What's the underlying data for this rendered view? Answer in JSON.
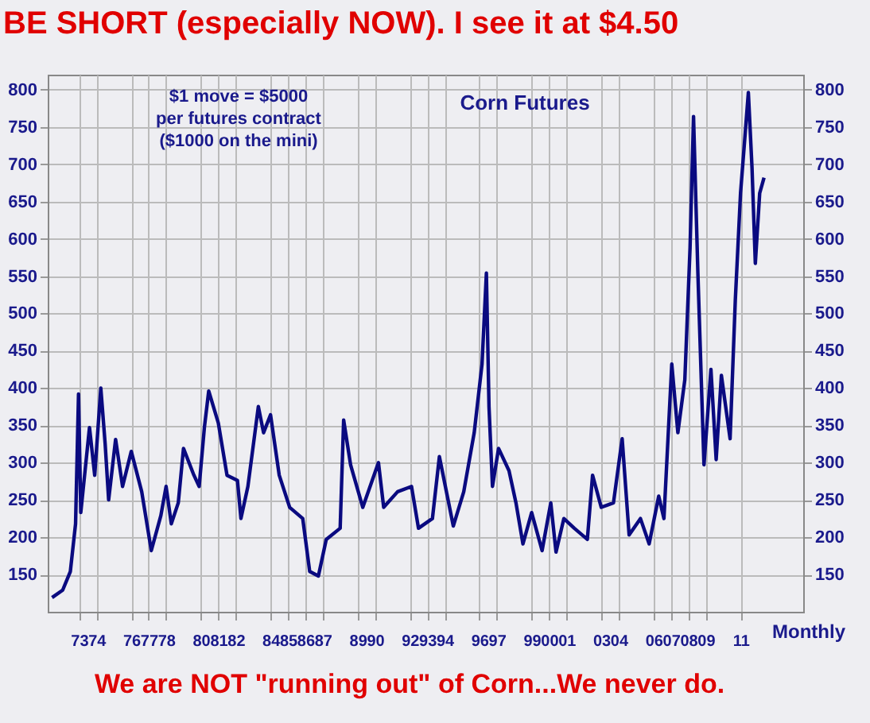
{
  "chart_data": {
    "type": "line",
    "title": "BE SHORT (especially NOW). I see it at $4.50",
    "subtitle": "Corn Futures",
    "xlabel": "Monthly",
    "annotations": [
      "$1 move = $5000\nper futures contract\n($1000 on the mini)",
      "We are NOT \"running out\" of Corn...We never do."
    ],
    "x": [
      1971.45,
      1972.06,
      1972.5,
      1972.8,
      1972.97,
      1973.1,
      1973.6,
      1973.9,
      1974.25,
      1974.5,
      1974.7,
      1975.1,
      1975.5,
      1976.0,
      1976.6,
      1977.15,
      1977.7,
      1978.0,
      1978.3,
      1978.7,
      1979.0,
      1979.6,
      1979.9,
      1980.2,
      1980.45,
      1981.0,
      1981.5,
      1982.1,
      1982.3,
      1982.7,
      1983.3,
      1983.6,
      1984.0,
      1984.5,
      1985.1,
      1985.85,
      1986.25,
      1986.75,
      1987.2,
      1988.0,
      1988.2,
      1988.6,
      1989.3,
      1990.2,
      1990.5,
      1991.3,
      1992.1,
      1992.5,
      1993.3,
      1993.7,
      1994.5,
      1995.1,
      1995.7,
      1996.15,
      1996.4,
      1996.55,
      1996.75,
      1997.1,
      1997.7,
      1998.1,
      1998.5,
      1999.0,
      1999.6,
      2000.1,
      2000.4,
      2000.85,
      2001.45,
      2002.2,
      2002.5,
      2003.0,
      2003.7,
      2004.2,
      2004.6,
      2005.25,
      2005.75,
      2006.3,
      2006.6,
      2007.05,
      2007.4,
      2007.8,
      2008.1,
      2008.3,
      2008.55,
      2008.9,
      2009.3,
      2009.6,
      2009.9,
      2010.4,
      2010.7,
      2011.0,
      2011.45,
      2011.66,
      2011.85,
      2012.1,
      2012.35
    ],
    "series": [
      {
        "color": "#0a0a80",
        "values": [
          119,
          129,
          154,
          218,
          392,
          233,
          347,
          283,
          400,
          325,
          250,
          331,
          268,
          315,
          261,
          182,
          229,
          268,
          218,
          246,
          319,
          283,
          268,
          347,
          396,
          353,
          283,
          276,
          225,
          268,
          375,
          340,
          364,
          283,
          240,
          225,
          154,
          148,
          197,
          212,
          357,
          297,
          240,
          300,
          240,
          261,
          268,
          212,
          225,
          308,
          215,
          261,
          340,
          432,
          554,
          375,
          268,
          319,
          289,
          246,
          191,
          233,
          182,
          246,
          180,
          225,
          212,
          197,
          283,
          240,
          246,
          332,
          203,
          225,
          191,
          255,
          225,
          432,
          340,
          411,
          588,
          764,
          554,
          297,
          425,
          304,
          417,
          332,
          518,
          661,
          796,
          695,
          567,
          661,
          682
        ]
      }
    ],
    "xlim": [
      1971.2,
      2014.6
    ],
    "xticks": [
      {
        "value": 1973,
        "label": "73"
      },
      {
        "value": 1974,
        "label": "74"
      },
      {
        "value": 1976,
        "label": "76"
      },
      {
        "value": 1977,
        "label": "77"
      },
      {
        "value": 1978,
        "label": "78"
      },
      {
        "value": 1980,
        "label": "80"
      },
      {
        "value": 1981,
        "label": "81"
      },
      {
        "value": 1982,
        "label": "82"
      },
      {
        "value": 1984,
        "label": "84"
      },
      {
        "value": 1985,
        "label": "85"
      },
      {
        "value": 1986,
        "label": "86"
      },
      {
        "value": 1987,
        "label": "87"
      },
      {
        "value": 1989,
        "label": "89"
      },
      {
        "value": 1990,
        "label": "90"
      },
      {
        "value": 1992,
        "label": "92"
      },
      {
        "value": 1993,
        "label": "93"
      },
      {
        "value": 1994,
        "label": "94"
      },
      {
        "value": 1996,
        "label": "96"
      },
      {
        "value": 1997,
        "label": "97"
      },
      {
        "value": 1999,
        "label": "99"
      },
      {
        "value": 2000,
        "label": "00"
      },
      {
        "value": 2001,
        "label": "01"
      },
      {
        "value": 2003,
        "label": "03"
      },
      {
        "value": 2004,
        "label": "04"
      },
      {
        "value": 2006,
        "label": "06"
      },
      {
        "value": 2007,
        "label": "07"
      },
      {
        "value": 2008,
        "label": "08"
      },
      {
        "value": 2009,
        "label": "09"
      },
      {
        "value": 2011,
        "label": "11"
      }
    ],
    "ylim": [
      100,
      820
    ],
    "yticks": [
      150,
      200,
      250,
      300,
      350,
      400,
      450,
      500,
      550,
      600,
      650,
      700,
      750,
      800
    ],
    "y2lim": [
      100,
      820
    ],
    "y2ticks": [
      150,
      200,
      250,
      300,
      350,
      400,
      450,
      500,
      550,
      600,
      650,
      700,
      750,
      800
    ],
    "grid": true
  }
}
